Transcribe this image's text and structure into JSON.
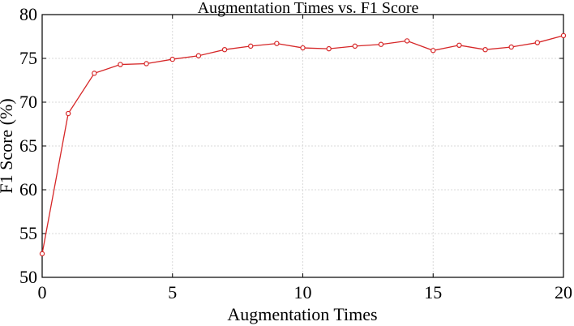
{
  "chart_data": {
    "type": "line",
    "title": "Augmentation Times vs. F1 Score",
    "xlabel": "Augmentation Times",
    "ylabel": "F1 Score (%)",
    "xlim": [
      0,
      20
    ],
    "ylim": [
      50,
      80
    ],
    "x_ticks": [
      0,
      5,
      10,
      15,
      20
    ],
    "y_ticks": [
      50,
      55,
      60,
      65,
      70,
      75,
      80
    ],
    "grid": true,
    "legend": false,
    "series": [
      {
        "color": "#d62728",
        "marker": "circle",
        "x": [
          0,
          1,
          2,
          3,
          4,
          5,
          6,
          7,
          8,
          9,
          10,
          11,
          12,
          13,
          14,
          15,
          16,
          17,
          18,
          19,
          20
        ],
        "y": [
          52.7,
          68.7,
          73.3,
          74.3,
          74.4,
          74.9,
          75.3,
          76.0,
          76.4,
          76.7,
          76.2,
          76.1,
          76.4,
          76.6,
          77.0,
          75.9,
          76.5,
          76.0,
          76.3,
          76.8,
          77.6
        ]
      }
    ]
  },
  "colors": {
    "axis": "#000000",
    "grid": "#d9d9d9",
    "line": "#d62728"
  }
}
